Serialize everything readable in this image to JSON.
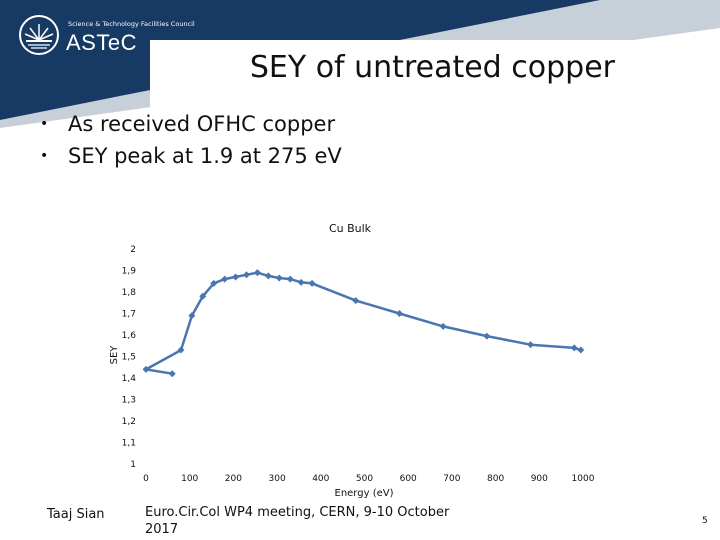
{
  "header": {
    "logo_org": "Science & Technology Facilities Council",
    "logo_name": "ASTeC",
    "title": "SEY of untreated copper"
  },
  "bullets": [
    "As received OFHC copper",
    "SEY peak at 1.9 at 275 eV"
  ],
  "footer": {
    "author": "Taaj Sian",
    "event": "Euro.Cir.Col WP4 meeting, CERN, 9-10 October 2017",
    "page": "5"
  },
  "colors": {
    "banner": "#163a64",
    "banner_light": "#c7cfd8",
    "series": "#4a76b0"
  },
  "chart_data": {
    "type": "scatter",
    "title": "Cu Bulk",
    "xlabel": "Energy (eV)",
    "ylabel": "SEY",
    "xlim": [
      0,
      1000
    ],
    "ylim": [
      1,
      2
    ],
    "x_ticks": [
      "0",
      "100",
      "200",
      "300",
      "400",
      "500",
      "600",
      "700",
      "800",
      "900",
      "1000"
    ],
    "y_ticks": [
      "1",
      "1,1",
      "1,2",
      "1,3",
      "1,4",
      "1,5",
      "1,6",
      "1,7",
      "1,8",
      "1,9",
      "2"
    ],
    "grid": false,
    "series": [
      {
        "x": [
          60,
          0,
          80,
          105,
          130,
          155,
          180,
          205,
          230,
          255,
          280,
          305,
          330,
          355,
          380,
          480,
          580,
          680,
          780,
          880,
          980,
          995
        ],
        "y": [
          1.42,
          1.44,
          1.53,
          1.69,
          1.78,
          1.84,
          1.86,
          1.87,
          1.88,
          1.89,
          1.875,
          1.865,
          1.86,
          1.845,
          1.84,
          1.76,
          1.7,
          1.64,
          1.595,
          1.555,
          1.54,
          1.53
        ]
      }
    ]
  }
}
